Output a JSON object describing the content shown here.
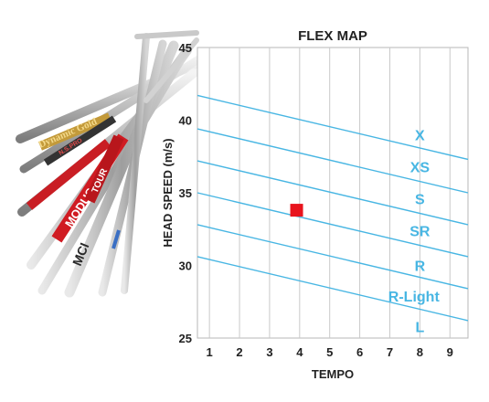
{
  "chart_data": {
    "type": "line",
    "title": "FLEX MAP",
    "xlabel": "TEMPO",
    "ylabel": "HEAD SPEED (m/s)",
    "xlim": [
      0.6,
      9.6
    ],
    "ylim": [
      25,
      45
    ],
    "x_ticks": [
      1,
      2,
      3,
      4,
      5,
      6,
      7,
      8,
      9
    ],
    "y_ticks": [
      25,
      30,
      35,
      40,
      45
    ],
    "grid": "vertical",
    "line_color": "#48b6e3",
    "series": [
      {
        "name": "",
        "x": [
          0.6,
          9.6
        ],
        "y": [
          41.7,
          37.3
        ]
      },
      {
        "name": "",
        "x": [
          0.6,
          9.6
        ],
        "y": [
          39.4,
          35.0
        ]
      },
      {
        "name": "",
        "x": [
          0.6,
          9.6
        ],
        "y": [
          37.2,
          32.8
        ]
      },
      {
        "name": "",
        "x": [
          0.6,
          9.6
        ],
        "y": [
          35.0,
          30.6
        ]
      },
      {
        "name": "",
        "x": [
          0.6,
          9.6
        ],
        "y": [
          32.8,
          28.4
        ]
      },
      {
        "name": "",
        "x": [
          0.6,
          9.6
        ],
        "y": [
          30.6,
          26.2
        ]
      }
    ],
    "zone_labels": [
      {
        "text": "X",
        "x": 8.0,
        "y": 39.0
      },
      {
        "text": "XS",
        "x": 8.0,
        "y": 36.8
      },
      {
        "text": "S",
        "x": 8.0,
        "y": 34.6
      },
      {
        "text": "SR",
        "x": 8.0,
        "y": 32.4
      },
      {
        "text": "R",
        "x": 8.0,
        "y": 30.0
      },
      {
        "text": "R-Light",
        "x": 7.8,
        "y": 27.9
      },
      {
        "text": "L",
        "x": 8.0,
        "y": 25.8
      }
    ],
    "marker": {
      "x": 3.9,
      "y": 33.8,
      "color": "#e8141d"
    }
  },
  "shaft_brands": {
    "dynamic_gold": "Dynamic Gold",
    "ns_pro": "N.S.PRO",
    "modus": "MODUS",
    "tour": "TOUR",
    "mci": "MCI"
  }
}
